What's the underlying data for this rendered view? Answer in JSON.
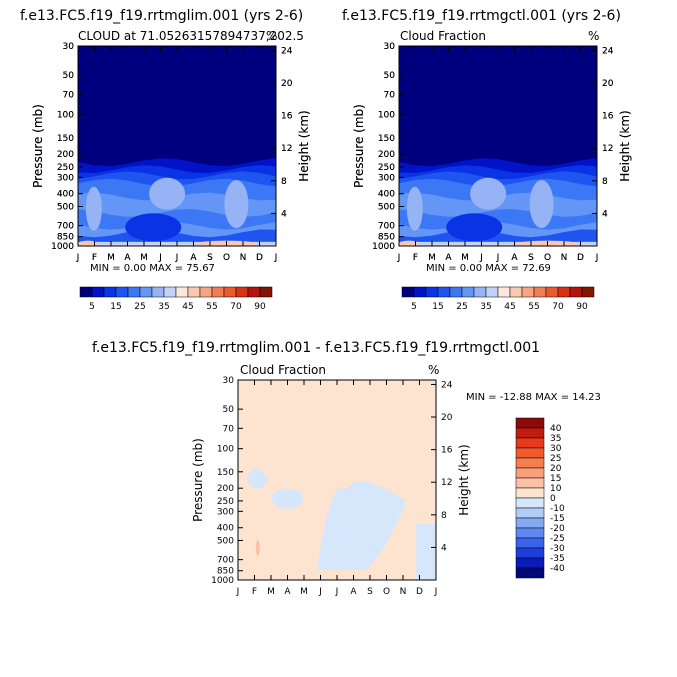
{
  "chart_data": [
    {
      "type": "heatmap",
      "title": "f.e13.FC5.f19_f19.rrtmglim.001 (yrs 2-6)",
      "subtitle": "CLOUD at 71.05263157894737,202.5",
      "units": "%",
      "xlabel": "",
      "ylabel": "Pressure (mb)",
      "ylabel_right": "Height (km)",
      "x_ticks": [
        "J",
        "F",
        "M",
        "A",
        "M",
        "J",
        "J",
        "A",
        "S",
        "O",
        "N",
        "D",
        "J"
      ],
      "y_ticks": [
        "30",
        "50",
        "70",
        "100",
        "150",
        "200",
        "250",
        "300",
        "400",
        "500",
        "700",
        "850",
        "1000"
      ],
      "y2_ticks": [
        "24",
        "20",
        "16",
        "12",
        "8",
        "4"
      ],
      "stats_text": "MIN =    0.00 MAX =   75.67",
      "colorbar_labels": [
        "5",
        "15",
        "25",
        "35",
        "45",
        "55",
        "70",
        "90"
      ]
    },
    {
      "type": "heatmap",
      "title": "f.e13.FC5.f19_f19.rrtmgctl.001 (yrs 2-6)",
      "subtitle": "Cloud Fraction",
      "units": "%",
      "xlabel": "",
      "ylabel": "Pressure (mb)",
      "ylabel_right": "Height (km)",
      "x_ticks": [
        "J",
        "F",
        "M",
        "A",
        "M",
        "J",
        "J",
        "A",
        "S",
        "O",
        "N",
        "D",
        "J"
      ],
      "y_ticks": [
        "30",
        "50",
        "70",
        "100",
        "150",
        "200",
        "250",
        "300",
        "400",
        "500",
        "700",
        "850",
        "1000"
      ],
      "y2_ticks": [
        "24",
        "20",
        "16",
        "12",
        "8",
        "4"
      ],
      "stats_text": "MIN =    0.00 MAX =   72.69",
      "colorbar_labels": [
        "5",
        "15",
        "25",
        "35",
        "45",
        "55",
        "70",
        "90"
      ]
    },
    {
      "type": "heatmap",
      "title": "f.e13.FC5.f19_f19.rrtmglim.001 - f.e13.FC5.f19_f19.rrtmgctl.001",
      "subtitle": "Cloud Fraction",
      "units": "%",
      "xlabel": "",
      "ylabel": "Pressure (mb)",
      "ylabel_right": "Height (km)",
      "x_ticks": [
        "J",
        "F",
        "M",
        "A",
        "M",
        "J",
        "J",
        "A",
        "S",
        "O",
        "N",
        "D",
        "J"
      ],
      "y_ticks": [
        "30",
        "50",
        "70",
        "100",
        "150",
        "200",
        "250",
        "300",
        "400",
        "500",
        "700",
        "850",
        "1000"
      ],
      "y2_ticks": [
        "24",
        "20",
        "16",
        "12",
        "8",
        "4"
      ],
      "stats_text": "MIN =  -12.88 MAX =   14.23",
      "colorbar_labels": [
        "40",
        "35",
        "30",
        "25",
        "20",
        "15",
        "10",
        "0",
        "-10",
        "-15",
        "-20",
        "-25",
        "-30",
        "-35",
        "-40"
      ]
    }
  ],
  "colors": {
    "abs_scale": [
      "#00007f",
      "#0013c8",
      "#0a33e6",
      "#1e55f0",
      "#3c78f5",
      "#6496f5",
      "#96b4f5",
      "#c3d2f8",
      "#fbe8dc",
      "#f9c8b0",
      "#f5a582",
      "#f07d55",
      "#eb5a2d",
      "#d73214",
      "#b4140a",
      "#821400"
    ],
    "diff_scale": [
      "#8c0a0a",
      "#c01c10",
      "#e8391c",
      "#f15a2a",
      "#f57d4e",
      "#f8a07a",
      "#fbc3a5",
      "#fde4d0",
      "#d6e6fb",
      "#b2cdf5",
      "#86aaf2",
      "#5f89f0",
      "#3a63ea",
      "#1e3fdc",
      "#0a1cb8",
      "#00087a"
    ]
  }
}
